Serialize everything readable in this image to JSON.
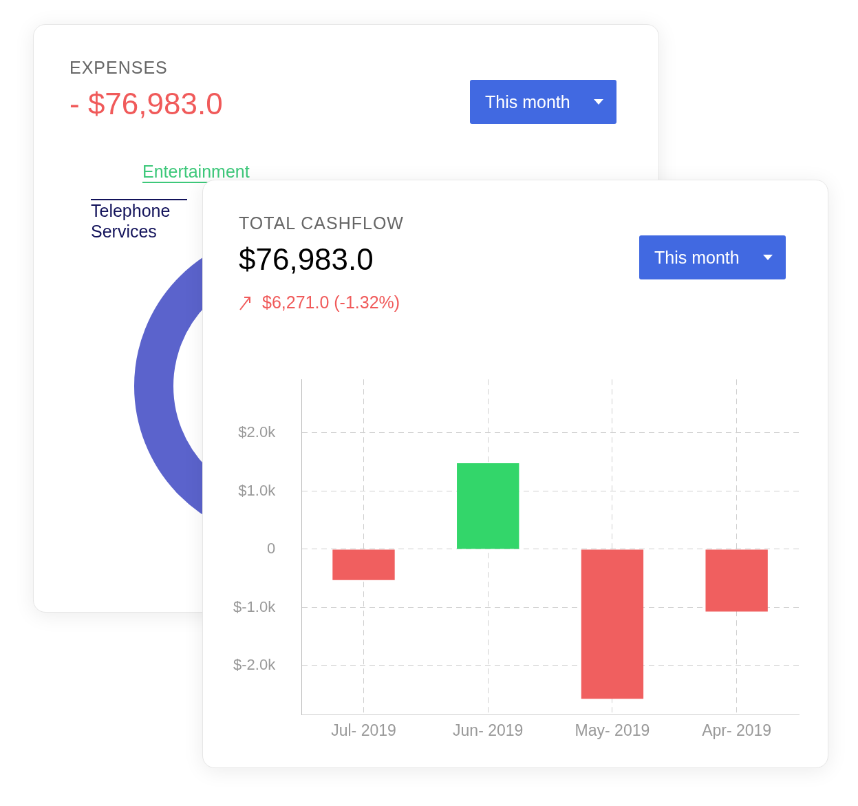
{
  "chart_data": [
    {
      "type": "other",
      "title": "EXPENSES",
      "subtitle": "- $76,983.0",
      "annotations": [
        "This month",
        "Entertainment",
        "Telephone Services"
      ]
    },
    {
      "type": "bar",
      "title": "TOTAL CASHFLOW",
      "subtitle": "$76,983.0",
      "annotations": [
        "$6,271.0 (-1.32%)",
        "This month"
      ],
      "categories": [
        "Jul- 2019",
        "Jun- 2019",
        "May- 2019",
        "Apr- 2019"
      ],
      "values": [
        -530,
        1480,
        -2570,
        -1070
      ],
      "colors": [
        "#f05f5f",
        "#33d66a",
        "#f05f5f",
        "#f05f5f"
      ],
      "ylim": [
        -2850,
        2920
      ],
      "yticks": [
        {
          "value": -2000,
          "label": "$-2.0k"
        },
        {
          "value": -1000,
          "label": "$-1.0k"
        },
        0,
        {
          "value": 1000,
          "label": "$1.0k"
        },
        {
          "value": 2000,
          "label": "$2.0k"
        }
      ],
      "grid": true,
      "legend": false
    }
  ]
}
